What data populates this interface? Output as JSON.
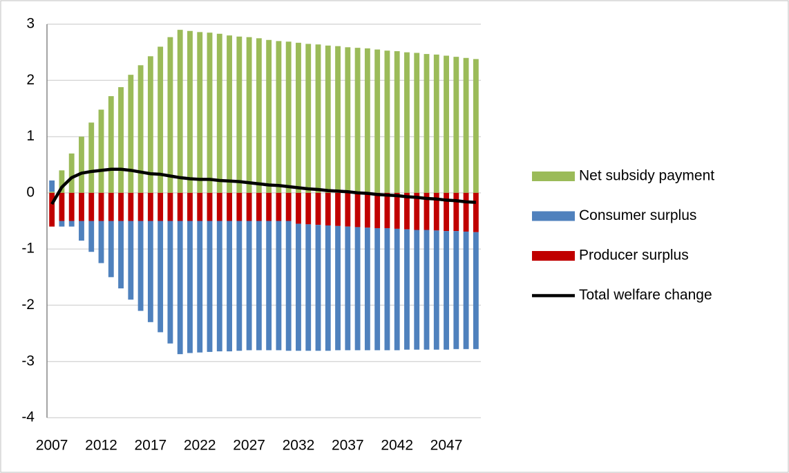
{
  "chart_data": {
    "type": "bar",
    "categories": [
      "2007",
      null,
      null,
      null,
      null,
      "2012",
      null,
      null,
      null,
      null,
      "2017",
      null,
      null,
      null,
      null,
      "2022",
      null,
      null,
      null,
      null,
      "2027",
      null,
      null,
      null,
      null,
      "2032",
      null,
      null,
      null,
      null,
      "2037",
      null,
      null,
      null,
      null,
      "2042",
      null,
      null,
      null,
      null,
      "2047",
      null,
      null,
      null
    ],
    "series": [
      {
        "name": "Net subsidy payment",
        "color": "#9bbb59",
        "values": [
          0.02,
          0.4,
          0.7,
          1.0,
          1.25,
          1.48,
          1.72,
          1.88,
          2.1,
          2.27,
          2.43,
          2.6,
          2.77,
          2.9,
          2.88,
          2.86,
          2.85,
          2.83,
          2.8,
          2.78,
          2.77,
          2.75,
          2.72,
          2.7,
          2.69,
          2.67,
          2.65,
          2.64,
          2.62,
          2.61,
          2.59,
          2.58,
          2.57,
          2.55,
          2.53,
          2.52,
          2.5,
          2.49,
          2.47,
          2.46,
          2.44,
          2.42,
          2.4,
          2.38
        ]
      },
      {
        "name": "Consumer surplus",
        "color": "#4f81bd",
        "values": [
          0.2,
          -0.1,
          -0.1,
          -0.35,
          -0.55,
          -0.75,
          -1.0,
          -1.2,
          -1.4,
          -1.6,
          -1.8,
          -1.98,
          -2.18,
          -2.37,
          -2.35,
          -2.34,
          -2.33,
          -2.32,
          -2.32,
          -2.31,
          -2.3,
          -2.3,
          -2.3,
          -2.3,
          -2.31,
          -2.26,
          -2.25,
          -2.24,
          -2.23,
          -2.21,
          -2.2,
          -2.19,
          -2.18,
          -2.17,
          -2.17,
          -2.16,
          -2.14,
          -2.13,
          -2.13,
          -2.12,
          -2.11,
          -2.1,
          -2.09,
          -2.08
        ]
      },
      {
        "name": "Producer surplus",
        "color": "#c00000",
        "values": [
          -0.6,
          -0.5,
          -0.5,
          -0.5,
          -0.5,
          -0.5,
          -0.5,
          -0.5,
          -0.5,
          -0.5,
          -0.5,
          -0.5,
          -0.5,
          -0.5,
          -0.5,
          -0.5,
          -0.5,
          -0.5,
          -0.5,
          -0.5,
          -0.5,
          -0.5,
          -0.5,
          -0.5,
          -0.5,
          -0.55,
          -0.56,
          -0.57,
          -0.58,
          -0.59,
          -0.6,
          -0.61,
          -0.62,
          -0.63,
          -0.63,
          -0.64,
          -0.65,
          -0.66,
          -0.66,
          -0.67,
          -0.68,
          -0.68,
          -0.69,
          -0.7
        ]
      },
      {
        "name": "Total welfare change",
        "type": "line",
        "color": "#000000",
        "values": [
          -0.2,
          0.1,
          0.27,
          0.35,
          0.38,
          0.4,
          0.42,
          0.42,
          0.4,
          0.37,
          0.34,
          0.33,
          0.3,
          0.27,
          0.25,
          0.24,
          0.24,
          0.22,
          0.21,
          0.2,
          0.18,
          0.16,
          0.14,
          0.13,
          0.11,
          0.09,
          0.07,
          0.06,
          0.04,
          0.03,
          0.02,
          0.0,
          -0.01,
          -0.03,
          -0.04,
          -0.05,
          -0.07,
          -0.08,
          -0.1,
          -0.11,
          -0.13,
          -0.14,
          -0.16,
          -0.17
        ]
      }
    ],
    "ylim": [
      -4,
      3
    ],
    "yticks": [
      -4,
      -3,
      -2,
      -1,
      0,
      1,
      2,
      3
    ],
    "grid": true,
    "legend": "right",
    "stacked": true
  }
}
